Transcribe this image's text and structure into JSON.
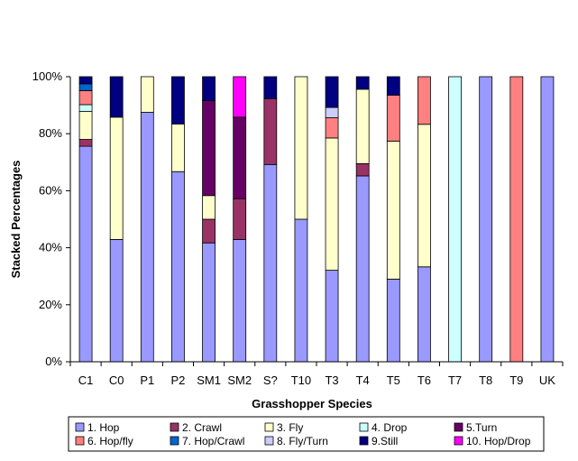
{
  "chart_data": {
    "type": "bar",
    "stacked": true,
    "percent": true,
    "xlabel": "Grasshopper Species",
    "ylabel": "Stacked Percentages",
    "ylim": [
      0,
      100
    ],
    "yticks": [
      "0%",
      "20%",
      "40%",
      "60%",
      "80%",
      "100%"
    ],
    "grid": false,
    "legend_position": "bottom",
    "categories": [
      "C1",
      "C0",
      "P1",
      "P2",
      "SM1",
      "SM2",
      "S?",
      "T10",
      "T3",
      "T4",
      "T5",
      "T6",
      "T7",
      "T8",
      "T9",
      "UK"
    ],
    "series": [
      {
        "name": "1. Hop",
        "color": "#9999ff",
        "values": [
          75.6,
          42.9,
          87.5,
          66.7,
          41.7,
          42.9,
          69.2,
          50,
          32.1,
          65.2,
          29,
          33.3,
          0,
          100,
          0,
          100
        ]
      },
      {
        "name": "2. Crawl",
        "color": "#993366",
        "values": [
          2.4,
          0,
          0,
          0,
          8.3,
          14.3,
          23.1,
          0,
          0,
          4.3,
          0,
          0,
          0,
          0,
          0,
          0
        ]
      },
      {
        "name": "3. Fly",
        "color": "#ffffcc",
        "values": [
          9.8,
          42.9,
          12.5,
          16.7,
          8.3,
          0,
          0,
          50,
          46.4,
          26.1,
          48.4,
          50,
          0,
          0,
          0,
          0
        ]
      },
      {
        "name": "4. Drop",
        "color": "#ccffff",
        "values": [
          2.4,
          0,
          0,
          0,
          0,
          0,
          0,
          0,
          0,
          0,
          0,
          0,
          100,
          0,
          0,
          0
        ]
      },
      {
        "name": "5.Turn",
        "color": "#660066",
        "values": [
          0,
          0,
          0,
          0,
          33.3,
          28.6,
          0,
          0,
          0,
          0,
          0,
          0,
          0,
          0,
          0,
          0
        ]
      },
      {
        "name": "6. Hop/fly",
        "color": "#ff8080",
        "values": [
          4.9,
          0,
          0,
          0,
          0,
          0,
          0,
          0,
          7.1,
          0,
          16.1,
          16.7,
          0,
          0,
          100,
          0
        ]
      },
      {
        "name": "7. Hop/Crawl",
        "color": "#0066cc",
        "values": [
          2.4,
          0,
          0,
          0,
          0,
          0,
          0,
          0,
          0,
          0,
          0,
          0,
          0,
          0,
          0,
          0
        ]
      },
      {
        "name": "8. Fly/Turn",
        "color": "#ccccff",
        "values": [
          0,
          0,
          0,
          0,
          0,
          0,
          0,
          0,
          3.6,
          0,
          0,
          0,
          0,
          0,
          0,
          0
        ]
      },
      {
        "name": "9.Still",
        "color": "#000080",
        "values": [
          2.5,
          14.2,
          0,
          16.6,
          8.4,
          0,
          7.7,
          0,
          10.8,
          4.4,
          6.5,
          0,
          0,
          0,
          0,
          0
        ]
      },
      {
        "name": "10. Hop/Drop",
        "color": "#ff00ff",
        "values": [
          0,
          0,
          0,
          0,
          0,
          14.2,
          0,
          0,
          0,
          0,
          0,
          0,
          0,
          0,
          0,
          0
        ]
      }
    ]
  }
}
